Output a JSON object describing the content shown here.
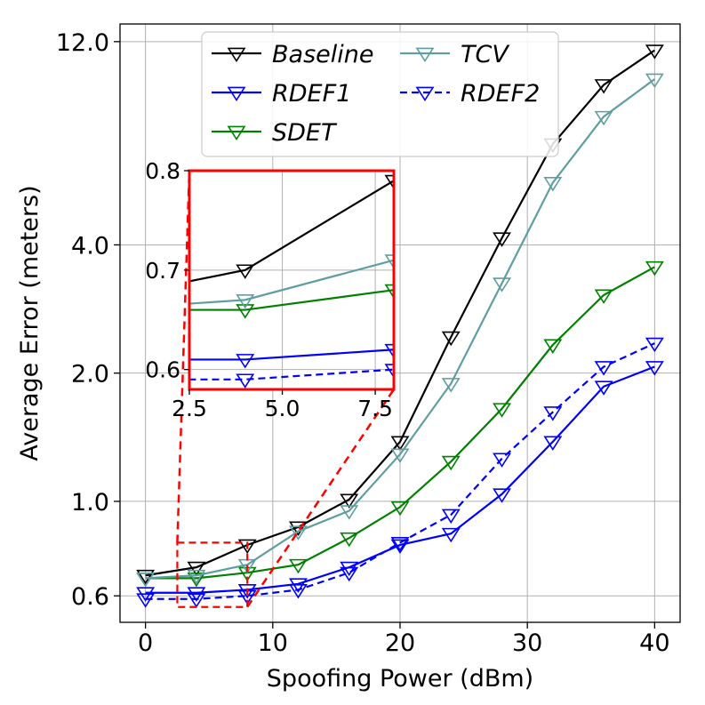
{
  "chart_data": {
    "type": "line",
    "xlabel": "Spoofing Power (dBm)",
    "ylabel": "Average Error (meters)",
    "xlim": [
      -2,
      42
    ],
    "ylim": [
      0.52,
      13.2
    ],
    "yscale": "log",
    "grid": true,
    "legend_placement": "top-center",
    "x_ticks": [
      0,
      10,
      20,
      30,
      40
    ],
    "x_tick_labels": [
      "0",
      "10",
      "20",
      "30",
      "40"
    ],
    "y_ticks": [
      0.6,
      1.0,
      2.0,
      4.0,
      12.0
    ],
    "y_tick_labels": [
      "0.6",
      "1.0",
      "2.0",
      "4.0",
      "12.0"
    ],
    "x": [
      0,
      4,
      8,
      12,
      16,
      20,
      24,
      28,
      32,
      36,
      40
    ],
    "series": [
      {
        "name": "Baseline",
        "color": "#000000",
        "dash": "solid",
        "values": [
          0.67,
          0.7,
          0.79,
          0.87,
          1.01,
          1.38,
          2.43,
          4.15,
          6.9,
          9.5,
          11.45
        ]
      },
      {
        "name": "RDEF1",
        "color": "#0000ff",
        "dash": "solid",
        "values": [
          0.61,
          0.61,
          0.62,
          0.64,
          0.7,
          0.79,
          0.84,
          1.04,
          1.38,
          1.86,
          2.07
        ]
      },
      {
        "name": "SDET",
        "color": "#008000",
        "dash": "solid",
        "values": [
          0.66,
          0.66,
          0.68,
          0.71,
          0.82,
          0.97,
          1.24,
          1.65,
          2.33,
          3.05,
          3.55
        ]
      },
      {
        "name": "TCV",
        "color": "#5f9ea0",
        "dash": "solid",
        "values": [
          0.66,
          0.67,
          0.71,
          0.85,
          0.95,
          1.29,
          1.89,
          3.25,
          5.6,
          8.0,
          9.8
        ]
      },
      {
        "name": "RDEF2",
        "color": "#0000ff",
        "dash": "dashed",
        "values": [
          0.59,
          0.59,
          0.6,
          0.62,
          0.68,
          0.8,
          0.93,
          1.26,
          1.62,
          2.07,
          2.35
        ]
      }
    ],
    "legend": [
      "Baseline",
      "TCV",
      "RDEF1",
      "RDEF2",
      "SDET"
    ],
    "inset": {
      "xlim": [
        2.5,
        8.0
      ],
      "ylim": [
        0.58,
        0.8
      ],
      "x_ticks": [
        2.5,
        5.0,
        7.5
      ],
      "x_tick_labels": [
        "2.5",
        "5.0",
        "7.5"
      ],
      "y_ticks": [
        0.6,
        0.7,
        0.8
      ],
      "y_tick_labels": [
        "0.6",
        "0.7",
        "0.8"
      ],
      "highlight_color": "#ff0000"
    }
  }
}
